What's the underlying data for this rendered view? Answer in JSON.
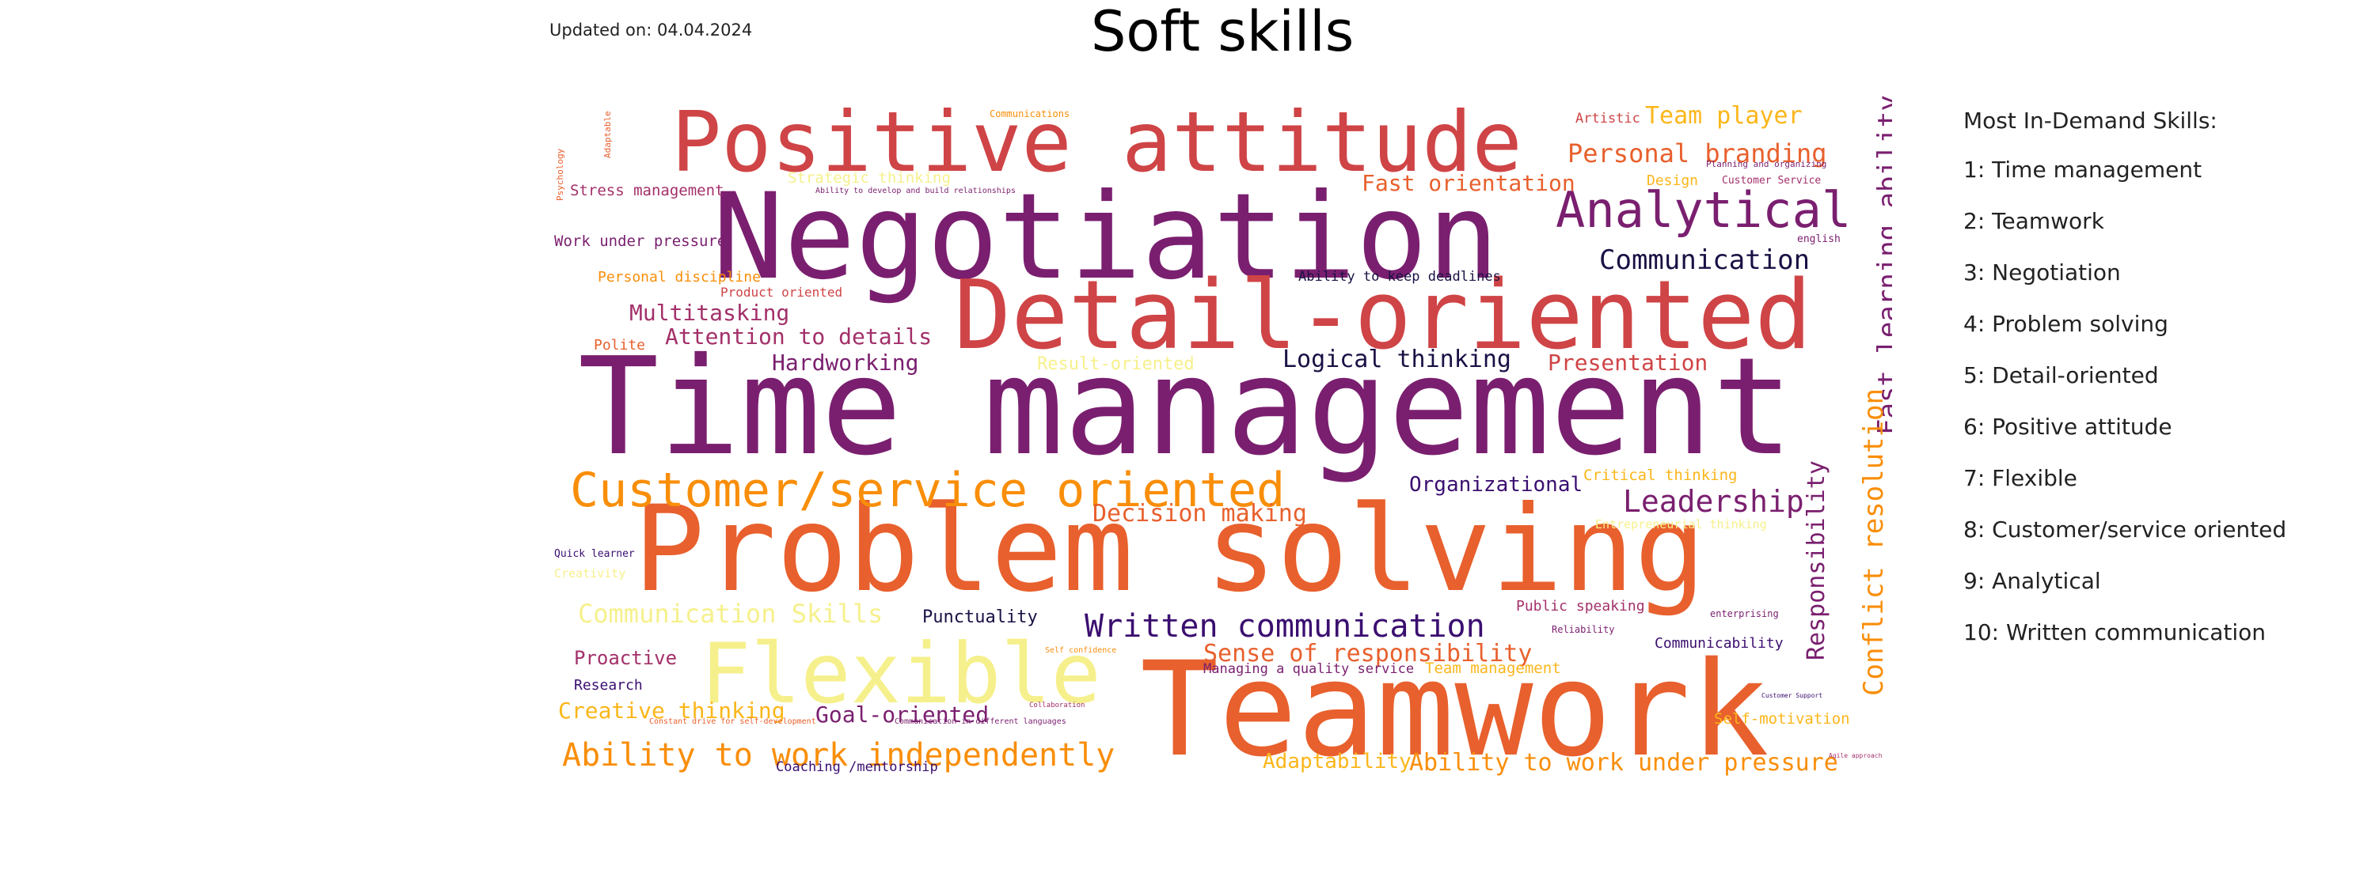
{
  "updated_label": "Updated on: 04.04.2024",
  "title": "Soft skills",
  "sidebar": {
    "heading": "Most In-Demand Skills:",
    "items": [
      "1: Time management",
      "2: Teamwork",
      "3: Negotiation",
      "4: Problem solving",
      "5: Detail-oriented",
      "6: Positive attitude",
      "7: Flexible",
      "8: Customer/service oriented",
      "9: Analytical",
      "10: Written communication"
    ]
  },
  "word_cloud": {
    "colors": {
      "deep_purple": "#3b0f70",
      "purple": "#7a1f6f",
      "magenta": "#a3306a",
      "red": "#cf4446",
      "orange_red": "#e8602d",
      "orange": "#f98e09",
      "amber": "#fbb61a",
      "pale_yellow": "#f6f08c",
      "dark": "#1b1044"
    },
    "words": [
      {
        "text": "Time management",
        "color": "#7a1f6f"
      },
      {
        "text": "Problem solving",
        "color": "#e8602d"
      },
      {
        "text": "Teamwork",
        "color": "#e8602d"
      },
      {
        "text": "Negotiation",
        "color": "#7a1f6f"
      },
      {
        "text": "Detail-oriented",
        "color": "#cf4446"
      },
      {
        "text": "Positive attitude",
        "color": "#cf4446"
      },
      {
        "text": "Flexible",
        "color": "#f6f08c"
      },
      {
        "text": "Customer/service oriented",
        "color": "#f98e09"
      },
      {
        "text": "Analytical",
        "color": "#7a1f6f"
      },
      {
        "text": "Written communication",
        "color": "#3b0f70"
      },
      {
        "text": "Ability to work independently",
        "color": "#f98e09"
      },
      {
        "text": "Fast learning ability",
        "color": "#7a1f6f"
      },
      {
        "text": "Conflict resolution",
        "color": "#f98e09"
      },
      {
        "text": "Responsibility",
        "color": "#7a1f6f"
      },
      {
        "text": "Leadership",
        "color": "#7a1f6f"
      },
      {
        "text": "Communication",
        "color": "#1b1044"
      },
      {
        "text": "Personal branding",
        "color": "#e8602d"
      },
      {
        "text": "Team player",
        "color": "#fbb61a"
      },
      {
        "text": "Fast orientation",
        "color": "#e8602d"
      },
      {
        "text": "Logical thinking",
        "color": "#1b1044"
      },
      {
        "text": "Presentation",
        "color": "#cf4446"
      },
      {
        "text": "Multitasking",
        "color": "#a3306a"
      },
      {
        "text": "Attention to details",
        "color": "#a3306a"
      },
      {
        "text": "Hardworking",
        "color": "#7a1f6f"
      },
      {
        "text": "Decision making",
        "color": "#e8602d"
      },
      {
        "text": "Organizational",
        "color": "#3b0f70"
      },
      {
        "text": "Sense of responsibility",
        "color": "#e8602d"
      },
      {
        "text": "Creative thinking",
        "color": "#fbb61a"
      },
      {
        "text": "Goal-oriented",
        "color": "#7a1f6f"
      },
      {
        "text": "Ability to work under pressure",
        "color": "#f98e09"
      },
      {
        "text": "Communication Skills",
        "color": "#f6f08c"
      },
      {
        "text": "Adaptability",
        "color": "#fbb61a"
      },
      {
        "text": "Proactive",
        "color": "#a3306a"
      },
      {
        "text": "Punctuality",
        "color": "#1b1044"
      },
      {
        "text": "Stress management",
        "color": "#a3306a"
      },
      {
        "text": "Work under pressure",
        "color": "#7a1f6f"
      },
      {
        "text": "Personal discipline",
        "color": "#f98e09"
      },
      {
        "text": "Product oriented",
        "color": "#cf4446"
      },
      {
        "text": "Polite",
        "color": "#e8602d"
      },
      {
        "text": "Result-oriented",
        "color": "#f6f08c"
      },
      {
        "text": "Critical thinking",
        "color": "#fbb61a"
      },
      {
        "text": "Public speaking",
        "color": "#a3306a"
      },
      {
        "text": "Team management",
        "color": "#fbb61a"
      },
      {
        "text": "Communicability",
        "color": "#3b0f70"
      },
      {
        "text": "Self-motivation",
        "color": "#fbb61a"
      },
      {
        "text": "Managing a quality service",
        "color": "#7a1f6f"
      },
      {
        "text": "Research",
        "color": "#3b0f70"
      },
      {
        "text": "Coaching /mentorship",
        "color": "#3b0f70"
      },
      {
        "text": "Ability to keep deadlines",
        "color": "#1b1044"
      },
      {
        "text": "Artistic",
        "color": "#cf4446"
      },
      {
        "text": "Design",
        "color": "#fbb61a"
      },
      {
        "text": "Customer Service",
        "color": "#a3306a"
      },
      {
        "text": "Strategic thinking",
        "color": "#f6f08c"
      },
      {
        "text": "Ability to develop and build relationships",
        "color": "#7a1f6f"
      },
      {
        "text": "Communications",
        "color": "#f98e09"
      },
      {
        "text": "Quick learner",
        "color": "#3b0f70"
      },
      {
        "text": "Creativity",
        "color": "#f6f08c"
      },
      {
        "text": "Reliability",
        "color": "#7a1f6f"
      },
      {
        "text": "enterprising",
        "color": "#7a1f6f"
      },
      {
        "text": "english",
        "color": "#7a1f6f"
      },
      {
        "text": "Self confidence",
        "color": "#f98e09"
      },
      {
        "text": "Collaboration",
        "color": "#a3306a"
      },
      {
        "text": "Communication in different languages",
        "color": "#7a1f6f"
      },
      {
        "text": "Constant drive for self-development",
        "color": "#e8602d"
      },
      {
        "text": "Planning and organizing",
        "color": "#7a1f6f"
      },
      {
        "text": "Customer Support",
        "color": "#3b0f70"
      },
      {
        "text": "Agile approach",
        "color": "#a3306a"
      },
      {
        "text": "Adaptable",
        "color": "#e8602d"
      },
      {
        "text": "Psychology",
        "color": "#e8602d"
      },
      {
        "text": "Entrepreneurial thinking",
        "color": "#f6f08c"
      }
    ]
  }
}
